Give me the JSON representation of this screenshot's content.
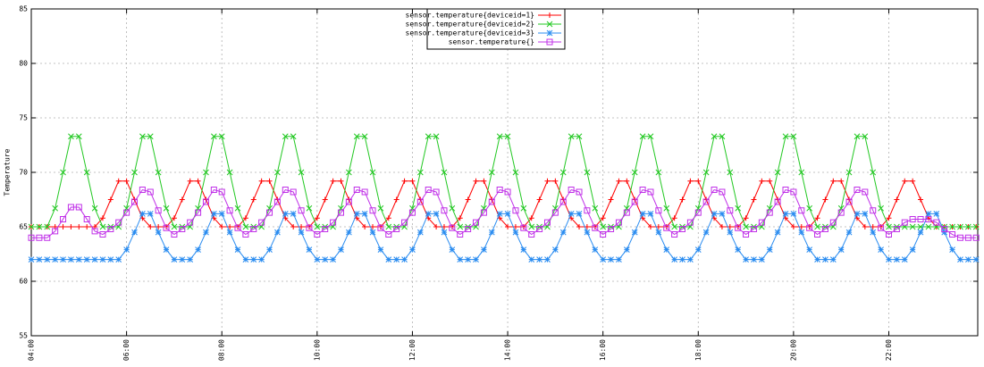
{
  "chart_data": {
    "type": "line",
    "ylabel": "Temperature",
    "legend": "top-center",
    "grid": true,
    "xlim": [
      240,
      1432
    ],
    "ylim": [
      55,
      85
    ],
    "yticks": [
      55,
      60,
      65,
      70,
      75,
      80,
      85
    ],
    "xticks": [
      {
        "value": 240,
        "label": "04:00"
      },
      {
        "value": 360,
        "label": "06:00"
      },
      {
        "value": 480,
        "label": "08:00"
      },
      {
        "value": 600,
        "label": "10:00"
      },
      {
        "value": 720,
        "label": "12:00"
      },
      {
        "value": 840,
        "label": "14:00"
      },
      {
        "value": 960,
        "label": "16:00"
      },
      {
        "value": 1080,
        "label": "18:00"
      },
      {
        "value": 1200,
        "label": "20:00"
      },
      {
        "value": 1320,
        "label": "22:00"
      }
    ],
    "x": [
      240,
      250,
      260,
      270,
      280,
      290,
      300,
      310,
      320,
      330,
      340,
      350,
      360,
      370,
      380,
      390,
      400,
      410,
      420,
      430,
      440,
      450,
      460,
      470,
      480,
      490,
      500,
      510,
      520,
      530,
      540,
      550,
      560,
      570,
      580,
      590,
      600,
      610,
      620,
      630,
      640,
      650,
      660,
      670,
      680,
      690,
      700,
      710,
      720,
      730,
      740,
      750,
      760,
      770,
      780,
      790,
      800,
      810,
      820,
      830,
      840,
      850,
      860,
      870,
      880,
      890,
      900,
      910,
      920,
      930,
      940,
      950,
      960,
      970,
      980,
      990,
      1000,
      1010,
      1020,
      1030,
      1040,
      1050,
      1060,
      1070,
      1080,
      1090,
      1100,
      1110,
      1120,
      1130,
      1140,
      1150,
      1160,
      1170,
      1180,
      1190,
      1200,
      1210,
      1220,
      1230,
      1240,
      1250,
      1260,
      1270,
      1280,
      1290,
      1300,
      1310,
      1320,
      1330,
      1340,
      1350,
      1360,
      1370,
      1380,
      1390,
      1400,
      1410,
      1420,
      1430
    ],
    "series": [
      {
        "name": "sensor.temperature{deviceid=1}",
        "color": "#ff0000",
        "marker": "plus",
        "values": [
          65,
          65,
          65,
          65,
          65,
          65,
          65,
          65,
          65,
          65.8,
          67.5,
          69.2,
          69.2,
          67.5,
          65.8,
          65,
          65,
          65,
          65.8,
          67.5,
          69.2,
          69.2,
          67.5,
          65.8,
          65,
          65,
          65,
          65.8,
          67.5,
          69.2,
          69.2,
          67.5,
          65.8,
          65,
          65,
          65,
          65.8,
          67.5,
          69.2,
          69.2,
          67.5,
          65.8,
          65,
          65,
          65,
          65.8,
          67.5,
          69.2,
          69.2,
          67.5,
          65.8,
          65,
          65,
          65,
          65.8,
          67.5,
          69.2,
          69.2,
          67.5,
          65.8,
          65,
          65,
          65,
          65.8,
          67.5,
          69.2,
          69.2,
          67.5,
          65.8,
          65,
          65,
          65,
          65.8,
          67.5,
          69.2,
          69.2,
          67.5,
          65.8,
          65,
          65,
          65,
          65.8,
          67.5,
          69.2,
          69.2,
          67.5,
          65.8,
          65,
          65,
          65,
          65.8,
          67.5,
          69.2,
          69.2,
          67.5,
          65.8,
          65,
          65,
          65,
          65.8,
          67.5,
          69.2,
          69.2,
          67.5,
          65.8,
          65,
          65,
          65,
          65.8,
          67.5,
          69.2,
          69.2,
          67.5,
          65.8,
          65,
          65,
          65,
          65,
          65,
          65
        ]
      },
      {
        "name": "sensor.temperature{deviceid=2}",
        "color": "#22c822",
        "marker": "cross",
        "values": [
          65,
          65,
          65,
          66.7,
          70,
          73.3,
          73.3,
          70,
          66.7,
          65,
          65,
          65,
          66.7,
          70,
          73.3,
          73.3,
          70,
          66.7,
          65,
          65,
          65,
          66.7,
          70,
          73.3,
          73.3,
          70,
          66.7,
          65,
          65,
          65,
          66.7,
          70,
          73.3,
          73.3,
          70,
          66.7,
          65,
          65,
          65,
          66.7,
          70,
          73.3,
          73.3,
          70,
          66.7,
          65,
          65,
          65,
          66.7,
          70,
          73.3,
          73.3,
          70,
          66.7,
          65,
          65,
          65,
          66.7,
          70,
          73.3,
          73.3,
          70,
          66.7,
          65,
          65,
          65,
          66.7,
          70,
          73.3,
          73.3,
          70,
          66.7,
          65,
          65,
          65,
          66.7,
          70,
          73.3,
          73.3,
          70,
          66.7,
          65,
          65,
          65,
          66.7,
          70,
          73.3,
          73.3,
          70,
          66.7,
          65,
          65,
          65,
          66.7,
          70,
          73.3,
          73.3,
          70,
          66.7,
          65,
          65,
          65,
          66.7,
          70,
          73.3,
          73.3,
          70,
          66.7,
          65,
          65,
          65,
          65,
          65,
          65,
          65,
          65,
          65,
          65,
          65,
          65
        ]
      },
      {
        "name": "sensor.temperature{deviceid=3}",
        "color": "#2a8cf0",
        "marker": "star",
        "values": [
          62,
          62,
          62,
          62,
          62,
          62,
          62,
          62,
          62,
          62,
          62,
          62,
          62.9,
          64.5,
          66.2,
          66.2,
          64.5,
          62.9,
          62,
          62,
          62,
          62.9,
          64.5,
          66.2,
          66.2,
          64.5,
          62.9,
          62,
          62,
          62,
          62.9,
          64.5,
          66.2,
          66.2,
          64.5,
          62.9,
          62,
          62,
          62,
          62.9,
          64.5,
          66.2,
          66.2,
          64.5,
          62.9,
          62,
          62,
          62,
          62.9,
          64.5,
          66.2,
          66.2,
          64.5,
          62.9,
          62,
          62,
          62,
          62.9,
          64.5,
          66.2,
          66.2,
          64.5,
          62.9,
          62,
          62,
          62,
          62.9,
          64.5,
          66.2,
          66.2,
          64.5,
          62.9,
          62,
          62,
          62,
          62.9,
          64.5,
          66.2,
          66.2,
          64.5,
          62.9,
          62,
          62,
          62,
          62.9,
          64.5,
          66.2,
          66.2,
          64.5,
          62.9,
          62,
          62,
          62,
          62.9,
          64.5,
          66.2,
          66.2,
          64.5,
          62.9,
          62,
          62,
          62,
          62.9,
          64.5,
          66.2,
          66.2,
          64.5,
          62.9,
          62,
          62,
          62,
          62.9,
          64.5,
          66.2,
          66.2,
          64.5,
          62.9,
          62,
          62,
          62
        ]
      },
      {
        "name": "sensor.temperature{}",
        "color": "#c030e8",
        "marker": "square",
        "values": [
          64,
          64,
          64,
          64.6,
          65.7,
          66.8,
          66.8,
          65.7,
          64.6,
          64.3,
          64.8,
          65.4,
          66.3,
          67.3,
          68.4,
          68.2,
          66.5,
          64.9,
          64.3,
          64.8,
          65.4,
          66.3,
          67.3,
          68.4,
          68.2,
          66.5,
          64.9,
          64.3,
          64.8,
          65.4,
          66.3,
          67.3,
          68.4,
          68.2,
          66.5,
          64.9,
          64.3,
          64.8,
          65.4,
          66.3,
          67.3,
          68.4,
          68.2,
          66.5,
          64.9,
          64.3,
          64.8,
          65.4,
          66.3,
          67.3,
          68.4,
          68.2,
          66.5,
          64.9,
          64.3,
          64.8,
          65.4,
          66.3,
          67.3,
          68.4,
          68.2,
          66.5,
          64.9,
          64.3,
          64.8,
          65.4,
          66.3,
          67.3,
          68.4,
          68.2,
          66.5,
          64.9,
          64.3,
          64.8,
          65.4,
          66.3,
          67.3,
          68.4,
          68.2,
          66.5,
          64.9,
          64.3,
          64.8,
          65.4,
          66.3,
          67.3,
          68.4,
          68.2,
          66.5,
          64.9,
          64.3,
          64.8,
          65.4,
          66.3,
          67.3,
          68.4,
          68.2,
          66.5,
          64.9,
          64.3,
          64.8,
          65.4,
          66.3,
          67.3,
          68.4,
          68.2,
          66.5,
          64.9,
          64.3,
          64.8,
          65.4,
          65.7,
          65.7,
          65.7,
          65.4,
          64.8,
          64.3,
          64,
          64,
          64
        ]
      }
    ]
  }
}
